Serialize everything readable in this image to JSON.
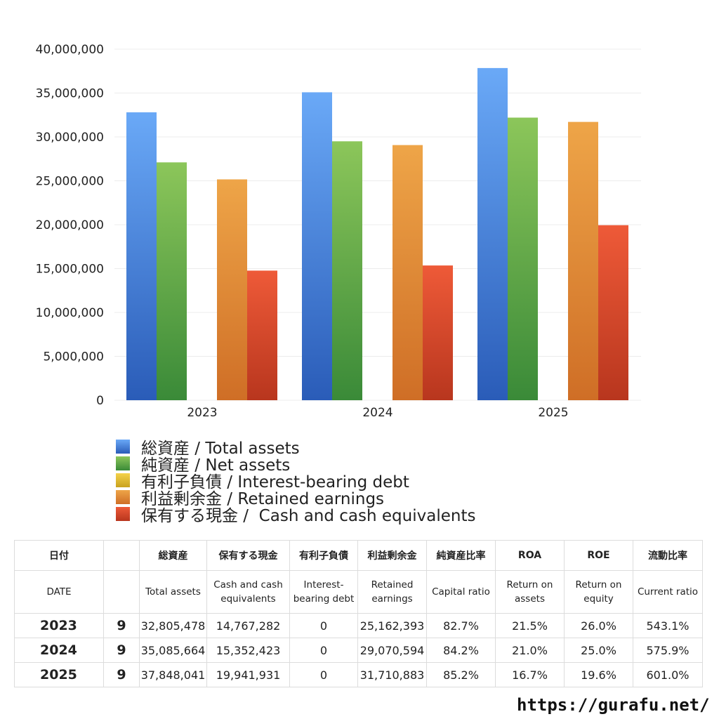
{
  "chart_data": {
    "type": "bar",
    "categories": [
      "2023",
      "2024",
      "2025"
    ],
    "y_ticks": [
      "0",
      "5,000,000",
      "10,000,000",
      "15,000,000",
      "20,000,000",
      "25,000,000",
      "30,000,000",
      "35,000,000",
      "40,000,000"
    ],
    "ylim": [
      0,
      40000000
    ],
    "grid": true,
    "legend_position": "bottom",
    "series": [
      {
        "name": "総資産 / Total assets",
        "values": [
          32805478,
          35085664,
          37848041
        ],
        "color_top": "#6aa9f7",
        "color_bottom": "#2a5cb8"
      },
      {
        "name": "純資産 / Net assets",
        "values": [
          27100000,
          29500000,
          32200000
        ],
        "color_top": "#8cc65a",
        "color_bottom": "#3a8a38"
      },
      {
        "name": "有利子負債 / Interest-bearing debt",
        "values": [
          0,
          0,
          0
        ],
        "color_top": "#f4d24a",
        "color_bottom": "#c9a21e"
      },
      {
        "name": "利益剰余金 / Retained earnings",
        "values": [
          25162393,
          29070594,
          31710883
        ],
        "color_top": "#eea548",
        "color_bottom": "#cf6e26"
      },
      {
        "name": "保有する現金 /  Cash and cash equivalents",
        "values": [
          14767282,
          15352423,
          19941931
        ],
        "color_top": "#ee5a38",
        "color_bottom": "#b8361e"
      }
    ]
  },
  "table": {
    "header_jp": [
      "日付",
      "",
      "総資産",
      "保有する現金",
      "有利子負債",
      "利益剰余金",
      "純資産比率",
      "ROA",
      "ROE",
      "流動比率"
    ],
    "header_en": [
      "DATE",
      "",
      "Total assets",
      "Cash and cash equivalents",
      "Interest-bearing debt",
      "Retained earnings",
      "Capital ratio",
      "Return on assets",
      "Return on equity",
      "Current ratio"
    ],
    "rows": [
      [
        "2023",
        "9",
        "32,805,478",
        "14,767,282",
        "0",
        "25,162,393",
        "82.7%",
        "21.5%",
        "26.0%",
        "543.1%"
      ],
      [
        "2024",
        "9",
        "35,085,664",
        "15,352,423",
        "0",
        "29,070,594",
        "84.2%",
        "21.0%",
        "25.0%",
        "575.9%"
      ],
      [
        "2025",
        "9",
        "37,848,041",
        "19,941,931",
        "0",
        "31,710,883",
        "85.2%",
        "16.7%",
        "19.6%",
        "601.0%"
      ]
    ]
  },
  "footer": {
    "site": "https://gurafu.net/"
  }
}
